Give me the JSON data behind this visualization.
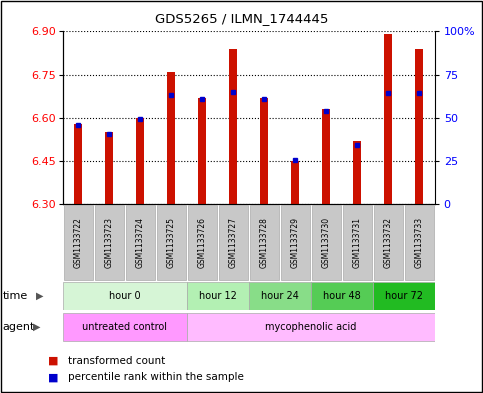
{
  "title": "GDS5265 / ILMN_1744445",
  "samples": [
    "GSM1133722",
    "GSM1133723",
    "GSM1133724",
    "GSM1133725",
    "GSM1133726",
    "GSM1133727",
    "GSM1133728",
    "GSM1133729",
    "GSM1133730",
    "GSM1133731",
    "GSM1133732",
    "GSM1133733"
  ],
  "red_values": [
    6.58,
    6.55,
    6.6,
    6.76,
    6.67,
    6.84,
    6.67,
    6.45,
    6.63,
    6.52,
    6.89,
    6.84
  ],
  "blue_values": [
    6.575,
    6.545,
    6.595,
    6.68,
    6.665,
    6.69,
    6.665,
    6.455,
    6.625,
    6.505,
    6.685,
    6.685
  ],
  "y_min": 6.3,
  "y_max": 6.9,
  "y_ticks": [
    6.3,
    6.45,
    6.6,
    6.75,
    6.9
  ],
  "right_y_ticks": [
    0,
    25,
    50,
    75,
    100
  ],
  "right_y_labels": [
    "0",
    "25",
    "50",
    "75",
    "100%"
  ],
  "time_groups": [
    {
      "label": "hour 0",
      "start": 0,
      "end": 4,
      "color": "#d6f5d6"
    },
    {
      "label": "hour 12",
      "start": 4,
      "end": 6,
      "color": "#b3f0b3"
    },
    {
      "label": "hour 24",
      "start": 6,
      "end": 8,
      "color": "#88dd88"
    },
    {
      "label": "hour 48",
      "start": 8,
      "end": 10,
      "color": "#55cc55"
    },
    {
      "label": "hour 72",
      "start": 10,
      "end": 12,
      "color": "#22bb22"
    }
  ],
  "agent_groups": [
    {
      "label": "untreated control",
      "start": 0,
      "end": 4,
      "color": "#ff99ff"
    },
    {
      "label": "mycophenolic acid",
      "start": 4,
      "end": 12,
      "color": "#ffbbff"
    }
  ],
  "bar_color": "#cc1100",
  "blue_color": "#0000cc",
  "sample_bg_color": "#c8c8c8",
  "legend_red_label": "transformed count",
  "legend_blue_label": "percentile rank within the sample",
  "bar_width": 0.25
}
